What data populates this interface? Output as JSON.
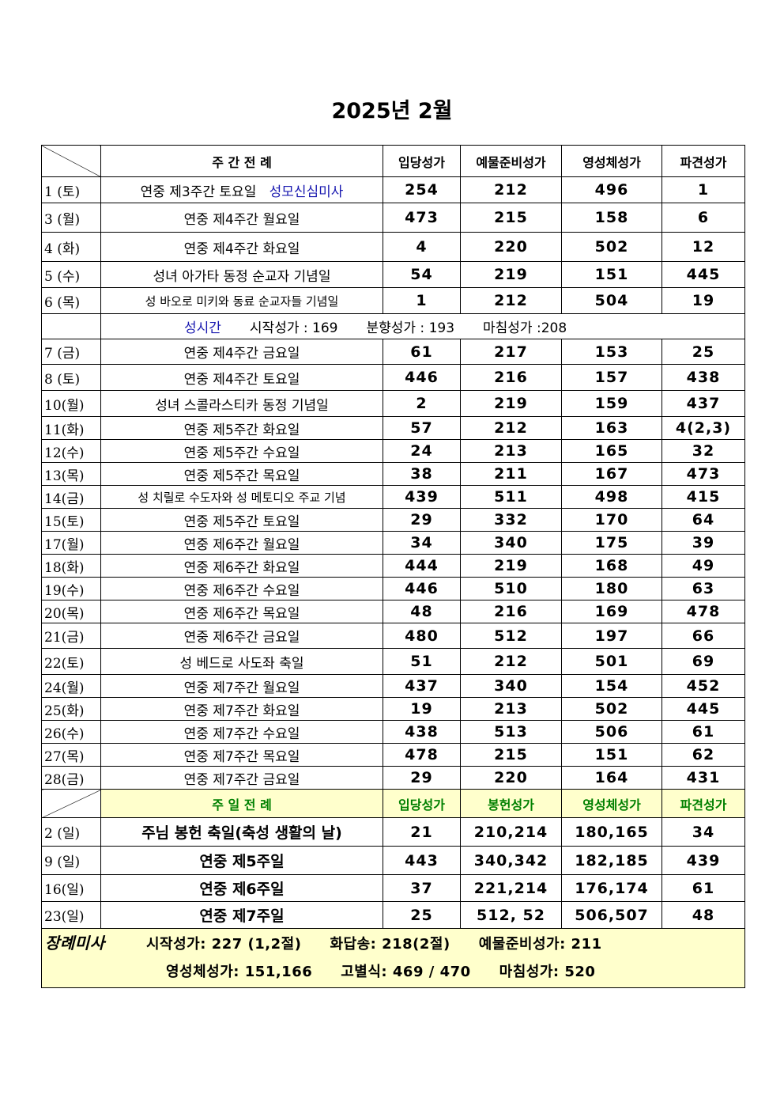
{
  "title": "2025년 2월",
  "weekday_header": {
    "liturgy": "주 간 전 례",
    "entrance": "입당성가",
    "offertory": "예물준비성가",
    "communion": "영성체성가",
    "recessional": "파견성가"
  },
  "weekday_rows_a": [
    {
      "date": "1 (토)",
      "name": "연중 제3주간 토요일",
      "extra": "성모신심미사",
      "entrance": "254",
      "offertory": "212",
      "communion": "496",
      "recessional": "1"
    },
    {
      "date": "3 (월)",
      "name": "연중 제4주간 월요일",
      "entrance": "473",
      "offertory": "215",
      "communion": "158",
      "recessional": "6"
    },
    {
      "date": "4 (화)",
      "name": "연중 제4주간 화요일",
      "entrance": "4",
      "offertory": "220",
      "communion": "502",
      "recessional": "12"
    },
    {
      "date": "5 (수)",
      "name": "성녀 아가타 동정 순교자 기념일",
      "entrance": "54",
      "offertory": "219",
      "communion": "151",
      "recessional": "445"
    },
    {
      "date": "6 (목)",
      "name": "성 바오로 미키와 동료 순교자들 기념일",
      "entrance": "1",
      "offertory": "212",
      "communion": "504",
      "recessional": "19"
    }
  ],
  "hours": {
    "label": "성시간",
    "start": "시작성가 : 169",
    "incense": "분향성가 : 193",
    "end": "마침성가 :208"
  },
  "weekday_rows_b": [
    {
      "date": "7 (금)",
      "name": "연중 제4주간 금요일",
      "entrance": "61",
      "offertory": "217",
      "communion": "153",
      "recessional": "25"
    },
    {
      "date": "8 (토)",
      "name": "연중 제4주간 토요일",
      "entrance": "446",
      "offertory": "216",
      "communion": "157",
      "recessional": "438"
    },
    {
      "date": "10(월)",
      "name": "성녀 스콜라스티카 동정 기념일",
      "entrance": "2",
      "offertory": "219",
      "communion": "159",
      "recessional": "437"
    },
    {
      "date": "11(화)",
      "name": "연중 제5주간 화요일",
      "entrance": "57",
      "offertory": "212",
      "communion": "163",
      "recessional": "4(2,3)"
    },
    {
      "date": "12(수)",
      "name": "연중 제5주간 수요일",
      "entrance": "24",
      "offertory": "213",
      "communion": "165",
      "recessional": "32"
    },
    {
      "date": "13(목)",
      "name": "연중 제5주간 목요일",
      "entrance": "38",
      "offertory": "211",
      "communion": "167",
      "recessional": "473"
    },
    {
      "date": "14(금)",
      "name": "성 치릴로 수도자와 성 메토디오 주교 기념",
      "entrance": "439",
      "offertory": "511",
      "communion": "498",
      "recessional": "415"
    },
    {
      "date": "15(토)",
      "name": "연중 제5주간 토요일",
      "entrance": "29",
      "offertory": "332",
      "communion": "170",
      "recessional": "64"
    },
    {
      "date": "17(월)",
      "name": "연중 제6주간 월요일",
      "entrance": "34",
      "offertory": "340",
      "communion": "175",
      "recessional": "39"
    },
    {
      "date": "18(화)",
      "name": "연중 제6주간 화요일",
      "entrance": "444",
      "offertory": "219",
      "communion": "168",
      "recessional": "49"
    },
    {
      "date": "19(수)",
      "name": "연중 제6주간 수요일",
      "entrance": "446",
      "offertory": "510",
      "communion": "180",
      "recessional": "63"
    },
    {
      "date": "20(목)",
      "name": "연중 제6주간 목요일",
      "entrance": "48",
      "offertory": "216",
      "communion": "169",
      "recessional": "478"
    },
    {
      "date": "21(금)",
      "name": "연중 제6주간 금요일",
      "entrance": "480",
      "offertory": "512",
      "communion": "197",
      "recessional": "66"
    },
    {
      "date": "22(토)",
      "name": "성 베드로 사도좌 축일",
      "entrance": "51",
      "offertory": "212",
      "communion": "501",
      "recessional": "69"
    },
    {
      "date": "24(월)",
      "name": "연중 제7주간 월요일",
      "entrance": "437",
      "offertory": "340",
      "communion": "154",
      "recessional": "452"
    },
    {
      "date": "25(화)",
      "name": "연중 제7주간 화요일",
      "entrance": "19",
      "offertory": "213",
      "communion": "502",
      "recessional": "445"
    },
    {
      "date": "26(수)",
      "name": "연중 제7주간 수요일",
      "entrance": "438",
      "offertory": "513",
      "communion": "506",
      "recessional": "61"
    },
    {
      "date": "27(목)",
      "name": "연중 제7주간 목요일",
      "entrance": "478",
      "offertory": "215",
      "communion": "151",
      "recessional": "62"
    },
    {
      "date": "28(금)",
      "name": "연중 제7주간 금요일",
      "entrance": "29",
      "offertory": "220",
      "communion": "164",
      "recessional": "431"
    }
  ],
  "sunday_header": {
    "liturgy": "주 일 전 례",
    "entrance": "입당성가",
    "offertory": "봉헌성가",
    "communion": "영성체성가",
    "recessional": "파견성가"
  },
  "sunday_rows": [
    {
      "date": "2 (일)",
      "name": "주님 봉헌 축일(축성 생활의 날)",
      "entrance": "21",
      "offertory": "210,214",
      "communion": "180,165",
      "recessional": "34"
    },
    {
      "date": "9 (일)",
      "name": "연중 제5주일",
      "entrance": "443",
      "offertory": "340,342",
      "communion": "182,185",
      "recessional": "439"
    },
    {
      "date": "16(일)",
      "name": "연중 제6주일",
      "entrance": "37",
      "offertory": "221,214",
      "communion": "176,174",
      "recessional": "61"
    },
    {
      "date": "23(일)",
      "name": "연중 제7주일",
      "entrance": "25",
      "offertory": "512, 52",
      "communion": "506,507",
      "recessional": "48"
    }
  ],
  "funeral": {
    "label": "장례미사",
    "start": "시작성가: 227 (1,2절)",
    "response": "화답송: 218(2절)",
    "offertory": "예물준비성가: 211",
    "communion": "영성체성가: 151,166",
    "farewell": "고별식: 469 / 470",
    "end": "마침성가: 520"
  }
}
